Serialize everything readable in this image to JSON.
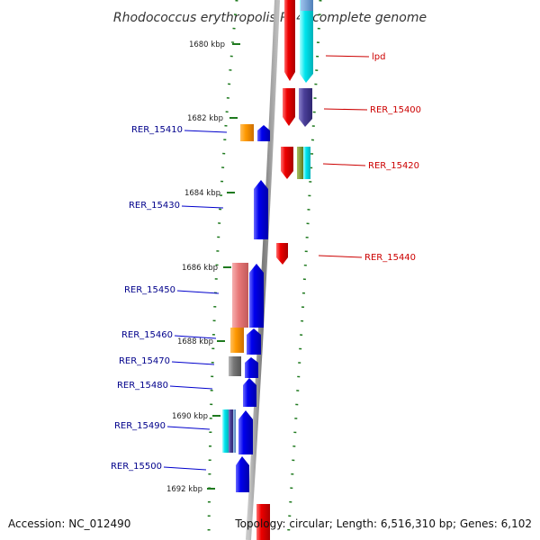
{
  "title": "Rhodococcus erythropolis PR4, complete genome",
  "footer": {
    "accession": "Accession: NC_012490",
    "summary": "Topology: circular; Length: 6,516,310 bp; Genes: 6,102"
  },
  "colors": {
    "forward_gene": "#0000ee",
    "reverse_gene": "#ee0000",
    "left_label": "#00008b",
    "right_label": "#cc0000",
    "tick": "#1f7a1f",
    "backbone": "#8a8a8a"
  },
  "scale_labels": [
    "1680 kbp",
    "1682 kbp",
    "1684 kbp",
    "1686 kbp",
    "1688 kbp",
    "1690 kbp",
    "1692 kbp"
  ],
  "gene_labels_left": [
    "RER_15410",
    "RER_15430",
    "RER_15450",
    "RER_15460",
    "RER_15470",
    "RER_15480",
    "RER_15490",
    "RER_15500"
  ],
  "gene_labels_right": [
    "lpd",
    "RER_15400",
    "RER_15420",
    "RER_15440"
  ]
}
